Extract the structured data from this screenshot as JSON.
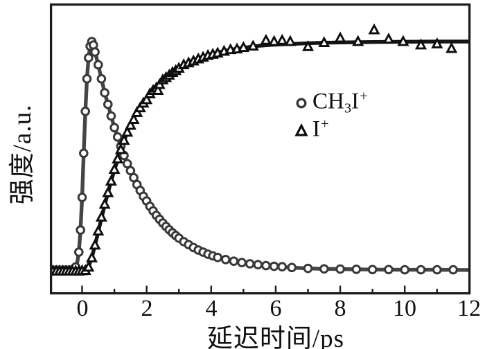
{
  "figure": {
    "description": "Pump-probe ion yield transients: CH3I+ decays while I+ rises to saturation"
  },
  "axes": {
    "x_label": "延迟时间/ps",
    "y_label": "强度/a.u."
  },
  "legend": {
    "items": [
      {
        "series": "CH3I+",
        "marker": "circle",
        "pre": "CH",
        "sub": "3",
        "mid": "I",
        "sup": "+"
      },
      {
        "series": "I+",
        "marker": "triangle",
        "pre": "I",
        "sub": "",
        "mid": "",
        "sup": "+"
      }
    ]
  },
  "colors": {
    "background": "#ffffff",
    "frame": "#1c1c1c",
    "text": "#101010",
    "circle": "#383838",
    "circle_line": "#454545",
    "triangle": "#0d0d0d",
    "triangle_line": "#141414"
  },
  "chart_data": {
    "type": "scatter",
    "title": "",
    "xlabel": "延迟时间/ps",
    "ylabel": "强度/a.u.",
    "xlim": [
      -1,
      12
    ],
    "ylim": [
      0,
      1.15
    ],
    "grid": false,
    "legend_position": "center-right",
    "x_major_ticks": [
      0,
      2,
      4,
      6,
      8,
      10,
      12
    ],
    "x_tick_labels": [
      "0",
      "2",
      "4",
      "6",
      "8",
      "10",
      "12"
    ],
    "x_minor_ticks": [
      1,
      3,
      5,
      7,
      9,
      11
    ],
    "series": [
      {
        "name": "CH3I+",
        "marker": "circle",
        "points": [
          [
            -1.0,
            0.018
          ],
          [
            -0.9,
            0.018
          ],
          [
            -0.8,
            0.018
          ],
          [
            -0.7,
            0.018
          ],
          [
            -0.6,
            0.018
          ],
          [
            -0.5,
            0.018
          ],
          [
            -0.4,
            0.018
          ],
          [
            -0.3,
            0.02
          ],
          [
            -0.2,
            0.031
          ],
          [
            -0.1,
            0.095
          ],
          [
            -0.05,
            0.19
          ],
          [
            0.0,
            0.33
          ],
          [
            0.05,
            0.52
          ],
          [
            0.1,
            0.7
          ],
          [
            0.15,
            0.84
          ],
          [
            0.2,
            0.93
          ],
          [
            0.25,
            0.98
          ],
          [
            0.3,
            1.0
          ],
          [
            0.35,
            0.985
          ],
          [
            0.4,
            0.955
          ],
          [
            0.5,
            0.9
          ],
          [
            0.6,
            0.84
          ],
          [
            0.7,
            0.78
          ],
          [
            0.8,
            0.73
          ],
          [
            0.9,
            0.68
          ],
          [
            1.0,
            0.63
          ],
          [
            1.1,
            0.59
          ],
          [
            1.2,
            0.55
          ],
          [
            1.3,
            0.51
          ],
          [
            1.4,
            0.475
          ],
          [
            1.5,
            0.445
          ],
          [
            1.6,
            0.415
          ],
          [
            1.7,
            0.385
          ],
          [
            1.8,
            0.36
          ],
          [
            1.9,
            0.335
          ],
          [
            2.0,
            0.315
          ],
          [
            2.1,
            0.292
          ],
          [
            2.2,
            0.272
          ],
          [
            2.3,
            0.253
          ],
          [
            2.4,
            0.236
          ],
          [
            2.5,
            0.22
          ],
          [
            2.6,
            0.205
          ],
          [
            2.7,
            0.191
          ],
          [
            2.8,
            0.178
          ],
          [
            2.9,
            0.166
          ],
          [
            3.0,
            0.155
          ],
          [
            3.15,
            0.14
          ],
          [
            3.3,
            0.127
          ],
          [
            3.45,
            0.115
          ],
          [
            3.6,
            0.104
          ],
          [
            3.75,
            0.095
          ],
          [
            3.9,
            0.086
          ],
          [
            4.05,
            0.079
          ],
          [
            4.2,
            0.072
          ],
          [
            4.45,
            0.063
          ],
          [
            4.7,
            0.056
          ],
          [
            4.95,
            0.05
          ],
          [
            5.2,
            0.045
          ],
          [
            5.45,
            0.041
          ],
          [
            5.7,
            0.037
          ],
          [
            5.95,
            0.034
          ],
          [
            6.2,
            0.032
          ],
          [
            6.5,
            0.029
          ],
          [
            7.0,
            0.025
          ],
          [
            7.5,
            0.023
          ],
          [
            8.0,
            0.022
          ],
          [
            8.5,
            0.021
          ],
          [
            9.0,
            0.02
          ],
          [
            9.5,
            0.02
          ],
          [
            10.0,
            0.019
          ],
          [
            10.5,
            0.019
          ],
          [
            11.0,
            0.019
          ],
          [
            11.5,
            0.019
          ]
        ],
        "fit": [
          [
            -1.05,
            0.018
          ],
          [
            -0.4,
            0.018
          ],
          [
            -0.3,
            0.02
          ],
          [
            -0.2,
            0.031
          ],
          [
            -0.15,
            0.05
          ],
          [
            -0.1,
            0.095
          ],
          [
            -0.05,
            0.19
          ],
          [
            0.0,
            0.33
          ],
          [
            0.05,
            0.52
          ],
          [
            0.1,
            0.7
          ],
          [
            0.15,
            0.84
          ],
          [
            0.2,
            0.93
          ],
          [
            0.25,
            0.98
          ],
          [
            0.3,
            1.0
          ],
          [
            0.35,
            0.99
          ],
          [
            0.4,
            0.958
          ],
          [
            0.5,
            0.9
          ],
          [
            0.6,
            0.84
          ],
          [
            0.7,
            0.78
          ],
          [
            0.8,
            0.73
          ],
          [
            0.9,
            0.68
          ],
          [
            1.0,
            0.63
          ],
          [
            1.2,
            0.55
          ],
          [
            1.4,
            0.475
          ],
          [
            1.6,
            0.415
          ],
          [
            1.8,
            0.36
          ],
          [
            2.0,
            0.315
          ],
          [
            2.2,
            0.272
          ],
          [
            2.4,
            0.236
          ],
          [
            2.6,
            0.205
          ],
          [
            2.8,
            0.178
          ],
          [
            3.0,
            0.155
          ],
          [
            3.25,
            0.133
          ],
          [
            3.5,
            0.114
          ],
          [
            3.75,
            0.097
          ],
          [
            4.0,
            0.083
          ],
          [
            4.5,
            0.062
          ],
          [
            5.0,
            0.048
          ],
          [
            5.5,
            0.039
          ],
          [
            6.0,
            0.032
          ],
          [
            6.5,
            0.028
          ],
          [
            7.0,
            0.025
          ],
          [
            7.5,
            0.023
          ],
          [
            8.0,
            0.022
          ],
          [
            9.0,
            0.02
          ],
          [
            10.0,
            0.019
          ],
          [
            11.0,
            0.019
          ],
          [
            12.05,
            0.018
          ]
        ]
      },
      {
        "name": "I+",
        "marker": "triangle",
        "points": [
          [
            -1.0,
            0.013
          ],
          [
            -0.9,
            0.013
          ],
          [
            -0.8,
            0.013
          ],
          [
            -0.7,
            0.013
          ],
          [
            -0.6,
            0.013
          ],
          [
            -0.5,
            0.013
          ],
          [
            -0.4,
            0.013
          ],
          [
            -0.3,
            0.013
          ],
          [
            -0.2,
            0.013
          ],
          [
            -0.1,
            0.013
          ],
          [
            0.0,
            0.015
          ],
          [
            0.1,
            0.016
          ],
          [
            0.2,
            0.03
          ],
          [
            0.3,
            0.07
          ],
          [
            0.4,
            0.125
          ],
          [
            0.5,
            0.185
          ],
          [
            0.6,
            0.245
          ],
          [
            0.7,
            0.3
          ],
          [
            0.8,
            0.35
          ],
          [
            0.9,
            0.4
          ],
          [
            1.0,
            0.45
          ],
          [
            1.1,
            0.495
          ],
          [
            1.2,
            0.535
          ],
          [
            1.3,
            0.575
          ],
          [
            1.4,
            0.61
          ],
          [
            1.5,
            0.64
          ],
          [
            1.6,
            0.665
          ],
          [
            1.7,
            0.695
          ],
          [
            1.8,
            0.715
          ],
          [
            1.9,
            0.735
          ],
          [
            2.0,
            0.75
          ],
          [
            2.1,
            0.775
          ],
          [
            2.2,
            0.79
          ],
          [
            2.3,
            0.8
          ],
          [
            2.35,
            0.79
          ],
          [
            2.4,
            0.815
          ],
          [
            2.5,
            0.835
          ],
          [
            2.6,
            0.845
          ],
          [
            2.7,
            0.855
          ],
          [
            2.8,
            0.867
          ],
          [
            2.9,
            0.875
          ],
          [
            3.0,
            0.885
          ],
          [
            3.15,
            0.9
          ],
          [
            3.3,
            0.908
          ],
          [
            3.45,
            0.916
          ],
          [
            3.6,
            0.925
          ],
          [
            3.75,
            0.932
          ],
          [
            3.9,
            0.94
          ],
          [
            4.05,
            0.945
          ],
          [
            4.2,
            0.95
          ],
          [
            4.4,
            0.958
          ],
          [
            4.6,
            0.965
          ],
          [
            4.8,
            0.968
          ],
          [
            5.0,
            0.974
          ],
          [
            5.3,
            0.98
          ],
          [
            5.7,
            1.005
          ],
          [
            5.95,
            1.0
          ],
          [
            6.2,
            1.005
          ],
          [
            6.45,
            1.0
          ],
          [
            7.0,
            0.978
          ],
          [
            7.5,
            0.995
          ],
          [
            8.0,
            1.015
          ],
          [
            8.55,
            1.0
          ],
          [
            9.05,
            1.05
          ],
          [
            9.5,
            1.01
          ],
          [
            9.95,
            1.0
          ],
          [
            10.5,
            0.985
          ],
          [
            11.0,
            0.99
          ],
          [
            11.45,
            0.97
          ]
        ],
        "fit": [
          [
            -1.05,
            0.013
          ],
          [
            -0.1,
            0.013
          ],
          [
            0.0,
            0.014
          ],
          [
            0.1,
            0.018
          ],
          [
            0.2,
            0.032
          ],
          [
            0.3,
            0.07
          ],
          [
            0.4,
            0.125
          ],
          [
            0.5,
            0.182
          ],
          [
            0.6,
            0.24
          ],
          [
            0.7,
            0.297
          ],
          [
            0.8,
            0.35
          ],
          [
            0.9,
            0.4
          ],
          [
            1.0,
            0.448
          ],
          [
            1.2,
            0.535
          ],
          [
            1.4,
            0.61
          ],
          [
            1.6,
            0.673
          ],
          [
            1.8,
            0.722
          ],
          [
            2.0,
            0.755
          ],
          [
            2.2,
            0.79
          ],
          [
            2.4,
            0.818
          ],
          [
            2.6,
            0.843
          ],
          [
            2.8,
            0.866
          ],
          [
            3.0,
            0.885
          ],
          [
            3.25,
            0.906
          ],
          [
            3.5,
            0.922
          ],
          [
            3.75,
            0.935
          ],
          [
            4.0,
            0.946
          ],
          [
            4.5,
            0.962
          ],
          [
            5.0,
            0.973
          ],
          [
            5.5,
            0.982
          ],
          [
            6.0,
            0.987
          ],
          [
            6.5,
            0.99
          ],
          [
            7.0,
            0.993
          ],
          [
            7.5,
            0.995
          ],
          [
            8.0,
            0.996
          ],
          [
            9.0,
            0.998
          ],
          [
            10.0,
            0.999
          ],
          [
            11.0,
            1.0
          ],
          [
            12.05,
            1.0
          ]
        ]
      }
    ]
  }
}
